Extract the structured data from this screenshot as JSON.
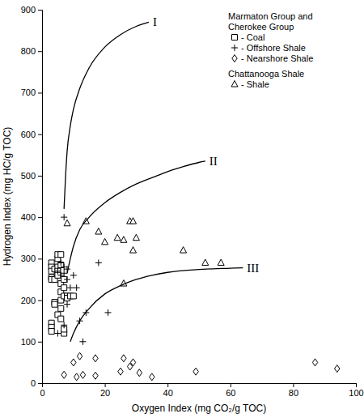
{
  "chart_data": {
    "type": "scatter",
    "x_label": "Oxygen Index (mg CO₂/g TOC)",
    "y_label": "Hydrogen Index (mg HC/g TOC)",
    "xlim": [
      0,
      100
    ],
    "ylim": [
      0,
      900
    ],
    "xticks": [
      0,
      20,
      40,
      60,
      80,
      100
    ],
    "yticks": [
      0,
      100,
      200,
      300,
      400,
      500,
      600,
      700,
      800,
      900
    ],
    "legend": "top-right",
    "series": [
      {
        "name": "- Coal",
        "group": [
          "Marmaton Group and",
          "Cherokee Group"
        ],
        "marker": "square",
        "color": "#000000",
        "x": [
          3,
          3,
          3,
          3,
          3,
          3,
          3,
          3,
          4,
          4,
          4,
          4,
          5,
          5,
          5,
          5,
          5,
          5,
          6,
          6,
          6,
          6,
          6,
          6,
          6,
          7,
          7,
          7,
          7,
          7,
          8,
          8,
          9,
          10
        ],
        "values": [
          145,
          135,
          125,
          290,
          280,
          270,
          255,
          250,
          195,
          190,
          250,
          275,
          165,
          280,
          300,
          310,
          270,
          260,
          310,
          285,
          240,
          220,
          200,
          180,
          155,
          230,
          210,
          250,
          120,
          130,
          210,
          205,
          210,
          210
        ]
      },
      {
        "name": "- Offshore Shale",
        "group": [
          "Marmaton Group and",
          "Cherokee Group"
        ],
        "marker": "plus",
        "color": "#000000",
        "x": [
          7,
          6,
          7,
          8,
          5,
          7,
          8,
          9,
          10,
          11,
          12,
          13,
          14,
          18,
          21,
          7,
          5,
          8,
          6
        ],
        "values": [
          400,
          290,
          280,
          275,
          270,
          265,
          250,
          230,
          260,
          230,
          150,
          100,
          170,
          290,
          170,
          140,
          120,
          190,
          260
        ]
      },
      {
        "name": "- Nearshore Shale",
        "group": [
          "Marmaton Group and",
          "Cherokee Group"
        ],
        "marker": "diamond",
        "color": "#000000",
        "x": [
          7,
          10,
          11,
          12,
          13,
          17,
          17,
          25,
          26,
          28,
          29,
          31,
          35,
          49,
          87,
          94
        ],
        "values": [
          20,
          50,
          15,
          65,
          20,
          60,
          18,
          28,
          60,
          40,
          50,
          25,
          15,
          28,
          50,
          35
        ]
      },
      {
        "name": "- Shale",
        "group": [
          "Chattanooga Shale"
        ],
        "marker": "triangle",
        "color": "#000000",
        "x": [
          8,
          14,
          18,
          20,
          24,
          26,
          26,
          28,
          29,
          29,
          30,
          45,
          52,
          57
        ],
        "values": [
          385,
          390,
          365,
          340,
          350,
          345,
          240,
          390,
          390,
          320,
          350,
          320,
          290,
          290
        ]
      },
      {
        "name": "I",
        "type": "line",
        "color": "#000000",
        "x": [
          7,
          7.5,
          8,
          9,
          10,
          12,
          15,
          20,
          25,
          30,
          34
        ],
        "values": [
          420,
          500,
          560,
          620,
          660,
          710,
          760,
          810,
          840,
          860,
          870
        ]
      },
      {
        "name": "II",
        "type": "line",
        "color": "#000000",
        "x": [
          8,
          9,
          10,
          12,
          15,
          20,
          25,
          30,
          35,
          40,
          45,
          50,
          52
        ],
        "values": [
          265,
          300,
          330,
          370,
          400,
          435,
          460,
          480,
          495,
          510,
          522,
          532,
          535
        ]
      },
      {
        "name": "III",
        "type": "line",
        "color": "#000000",
        "x": [
          9,
          10,
          12,
          15,
          20,
          25,
          30,
          35,
          40,
          50,
          60,
          64
        ],
        "values": [
          100,
          120,
          150,
          180,
          215,
          235,
          250,
          260,
          267,
          274,
          277,
          278
        ]
      }
    ]
  }
}
